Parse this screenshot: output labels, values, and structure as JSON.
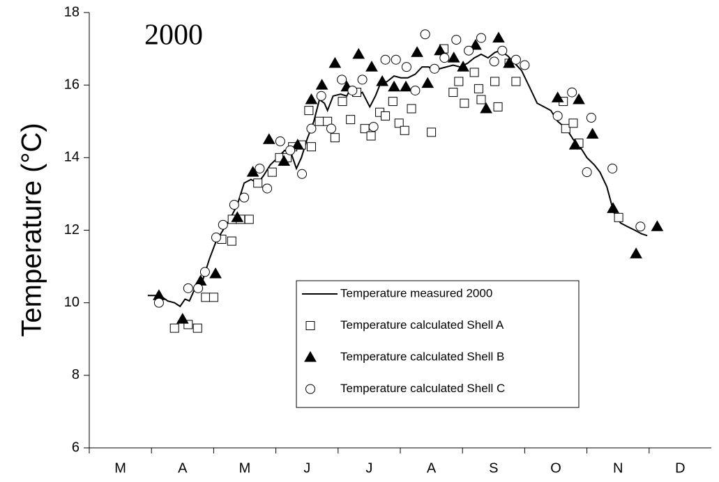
{
  "chart_data": {
    "type": "line",
    "title": "2000",
    "y_label": "Temperature (°C)",
    "categories": [
      "M",
      "A",
      "M",
      "J",
      "J",
      "A",
      "S",
      "O",
      "N",
      "D"
    ],
    "xlim": [
      0,
      10
    ],
    "ylim": [
      6,
      18
    ],
    "yticks": [
      6,
      8,
      10,
      12,
      14,
      16,
      18
    ],
    "grid": false,
    "series": [
      {
        "name": "Temperature measured 2000",
        "color": "#000000",
        "marker": "line",
        "x": [
          0.94,
          1.14,
          1.26,
          1.37,
          1.46,
          1.54,
          1.61,
          1.7,
          1.82,
          1.93,
          2.04,
          2.15,
          2.26,
          2.38,
          2.49,
          2.6,
          2.71,
          2.8,
          2.91,
          3.03,
          3.14,
          3.25,
          3.33,
          3.41,
          3.5,
          3.61,
          3.7,
          3.78,
          3.83,
          3.92,
          4.04,
          4.14,
          4.2,
          4.3,
          4.39,
          4.51,
          4.6,
          4.67,
          4.79,
          4.9,
          5.01,
          5.12,
          5.24,
          5.35,
          5.46,
          5.54,
          5.63,
          5.74,
          5.85,
          5.96,
          6.08,
          6.19,
          6.3,
          6.41,
          6.52,
          6.61,
          6.73,
          6.84,
          6.95,
          7.09,
          7.2,
          7.31,
          7.42,
          7.53,
          7.67,
          7.78,
          7.89,
          8.0,
          8.12,
          8.21,
          8.32,
          8.43,
          8.54,
          8.65,
          8.77,
          8.88,
          8.97
        ],
        "values": [
          10.2,
          10.2,
          10.05,
          10.0,
          9.9,
          10.1,
          10.05,
          10.4,
          10.6,
          11.2,
          11.7,
          12.0,
          12.3,
          12.7,
          13.3,
          13.4,
          13.3,
          13.5,
          13.8,
          14.0,
          14.2,
          14.1,
          13.7,
          14.0,
          14.5,
          15.0,
          15.6,
          15.5,
          15.3,
          15.7,
          15.75,
          15.7,
          15.9,
          15.7,
          15.8,
          15.4,
          15.7,
          16.0,
          16.1,
          16.25,
          16.2,
          16.2,
          16.3,
          16.5,
          16.5,
          16.35,
          16.45,
          16.5,
          16.55,
          16.5,
          16.6,
          16.75,
          16.85,
          16.75,
          16.9,
          16.95,
          16.8,
          16.6,
          16.4,
          15.9,
          15.5,
          15.4,
          15.3,
          15.0,
          14.8,
          14.5,
          14.3,
          14.0,
          13.8,
          13.6,
          13.2,
          12.5,
          12.2,
          12.1,
          12.0,
          11.9,
          11.85
        ]
      },
      {
        "name": "Temperature calculated Shell A",
        "color": "#000000",
        "marker": "square",
        "x": [
          1.37,
          1.59,
          1.74,
          1.87,
          2.0,
          2.13,
          2.29,
          2.3,
          2.43,
          2.57,
          2.71,
          2.94,
          3.06,
          3.18,
          3.27,
          3.41,
          3.57,
          3.53,
          3.7,
          3.83,
          3.95,
          4.07,
          4.2,
          4.3,
          4.43,
          4.53,
          4.67,
          4.76,
          4.88,
          4.98,
          5.07,
          5.18,
          5.5,
          5.7,
          5.85,
          5.94,
          6.03,
          6.19,
          6.26,
          6.3,
          6.52,
          6.57,
          6.75,
          6.86,
          7.62,
          7.66,
          7.78,
          7.87,
          8.51
        ],
        "values": [
          9.3,
          9.4,
          9.3,
          10.15,
          10.15,
          11.75,
          11.7,
          12.3,
          12.3,
          12.3,
          13.3,
          13.6,
          14.0,
          14.0,
          14.3,
          14.35,
          14.3,
          15.3,
          15.0,
          15.0,
          14.55,
          15.55,
          15.05,
          15.8,
          14.8,
          14.6,
          15.25,
          15.15,
          15.55,
          14.95,
          14.75,
          15.35,
          14.7,
          17.0,
          15.8,
          16.1,
          15.5,
          16.35,
          15.9,
          15.6,
          16.1,
          15.4,
          16.6,
          16.1,
          15.55,
          14.8,
          14.95,
          14.4,
          12.35
        ]
      },
      {
        "name": "Temperature calculated Shell B",
        "color": "#000000",
        "marker": "triangle",
        "x": [
          1.12,
          1.5,
          1.79,
          2.03,
          2.38,
          2.63,
          2.89,
          3.13,
          3.35,
          3.57,
          3.74,
          3.95,
          4.14,
          4.33,
          4.54,
          4.71,
          4.9,
          5.09,
          5.27,
          5.44,
          5.64,
          5.86,
          6.01,
          6.21,
          6.38,
          6.58,
          6.75,
          7.53,
          7.87,
          7.81,
          8.09,
          8.42,
          8.79,
          9.13
        ],
        "values": [
          10.2,
          9.55,
          10.6,
          10.8,
          12.35,
          13.6,
          14.5,
          13.9,
          14.35,
          15.6,
          16.0,
          16.6,
          15.95,
          16.85,
          16.5,
          16.1,
          15.95,
          15.95,
          16.9,
          16.05,
          16.95,
          16.75,
          16.5,
          17.1,
          15.35,
          17.3,
          16.6,
          15.65,
          15.6,
          14.35,
          14.65,
          12.6,
          11.35,
          12.1
        ]
      },
      {
        "name": "Temperature calculated Shell C",
        "color": "#000000",
        "marker": "circle",
        "x": [
          1.12,
          1.59,
          1.75,
          1.86,
          2.04,
          2.15,
          2.33,
          2.49,
          2.74,
          2.86,
          3.07,
          3.23,
          3.42,
          3.57,
          3.73,
          3.89,
          4.06,
          4.23,
          4.39,
          4.57,
          4.76,
          4.93,
          5.1,
          5.24,
          5.4,
          5.55,
          5.71,
          5.9,
          6.1,
          6.3,
          6.51,
          6.64,
          6.86,
          7.0,
          7.53,
          7.76,
          8.07,
          8.0,
          8.41,
          8.86
        ],
        "values": [
          10.0,
          10.4,
          10.4,
          10.85,
          11.8,
          12.15,
          12.7,
          12.9,
          13.7,
          13.15,
          14.45,
          14.2,
          13.55,
          14.8,
          15.7,
          14.8,
          16.15,
          15.85,
          16.15,
          14.85,
          16.7,
          16.7,
          16.5,
          15.85,
          17.4,
          16.45,
          16.75,
          17.25,
          16.95,
          17.3,
          16.65,
          16.95,
          16.7,
          16.55,
          15.15,
          15.8,
          15.1,
          13.6,
          13.7,
          12.1
        ]
      }
    ]
  }
}
